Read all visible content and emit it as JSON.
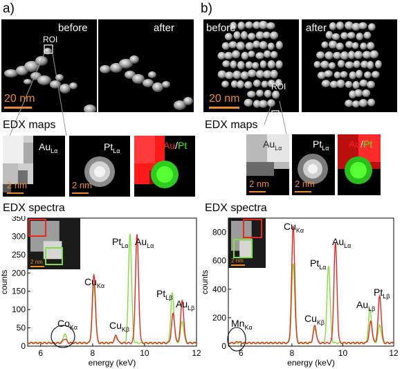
{
  "panel_a": {
    "letter": "a)",
    "before_label": "before",
    "after_label": "after",
    "roi_label": "ROI",
    "scalebar_label": "20 nm",
    "edx_maps_title": "EDX maps",
    "map_scalebar_label": "2 nm",
    "map1_element": "Au",
    "map1_line": "Lα",
    "map2_element": "Pt",
    "map2_line": "Lα",
    "map3_au": "Au",
    "map3_sep": "/",
    "map3_pt": "Pt",
    "edx_spectra_title": "EDX spectra",
    "inset_scalebar_label": "2 nm"
  },
  "panel_b": {
    "letter": "b)",
    "before_label": "before",
    "after_label": "after",
    "roi_label": "ROI",
    "scalebar_label": "20 nm",
    "edx_maps_title": "EDX maps",
    "map_scalebar_label": "2 nm",
    "map1_element": "Au",
    "map1_line": "Lα",
    "map2_element": "Pt",
    "map2_line": "Lα",
    "map3_au": "Au",
    "map3_sep": "/",
    "map3_pt": "Pt",
    "edx_spectra_title": "EDX spectra",
    "inset_scalebar_label": "2 nm"
  },
  "colors": {
    "scalebar": "#f08a28",
    "red_series": "#e8261c",
    "green_series": "#7ee03a",
    "au_map": "#ff0000",
    "pt_map": "#33ee22"
  },
  "chart_data": [
    {
      "type": "line",
      "panel": "a",
      "xlabel": "energy (keV)",
      "ylabel": "counts",
      "xlim": [
        5.5,
        12
      ],
      "ylim": [
        0,
        350
      ],
      "xticks": [
        6,
        8,
        10,
        12
      ],
      "yticks": [
        0,
        50,
        100,
        150,
        200,
        250,
        300,
        350
      ],
      "grid": false,
      "series": [
        {
          "color": "#e8261c",
          "peaks": [
            [
              6.93,
              12
            ],
            [
              8.05,
              185
            ],
            [
              8.9,
              20
            ],
            [
              9.71,
              295
            ],
            [
              11.1,
              80
            ],
            [
              11.45,
              115
            ]
          ]
        },
        {
          "color": "#7ee03a",
          "peaks": [
            [
              6.93,
              25
            ],
            [
              8.05,
              160
            ],
            [
              8.9,
              15
            ],
            [
              9.44,
              300
            ],
            [
              11.07,
              135
            ],
            [
              11.45,
              60
            ]
          ]
        }
      ],
      "annotations": [
        {
          "text": "Pt",
          "sub": "Lα",
          "x": 9.44,
          "y": 300
        },
        {
          "text": "Au",
          "sub": "Lα",
          "x": 9.71,
          "y": 295
        },
        {
          "text": "Cu",
          "sub": "Kα",
          "x": 8.05,
          "y": 185
        },
        {
          "text": "Pt",
          "sub": "Lβ",
          "x": 11.07,
          "y": 135
        },
        {
          "text": "Au",
          "sub": "Lβ",
          "x": 11.45,
          "y": 115
        },
        {
          "text": "Cu",
          "sub": "Kβ",
          "x": 8.9,
          "y": 45
        },
        {
          "text": "Co",
          "sub": "Kα",
          "x": 6.93,
          "y": 25
        }
      ]
    },
    {
      "type": "line",
      "panel": "b",
      "xlabel": "energy (keV)",
      "ylabel": "counts",
      "xlim": [
        5.5,
        12
      ],
      "ylim": [
        0,
        900
      ],
      "xticks": [
        6,
        8,
        10,
        12
      ],
      "yticks": [
        0,
        200,
        400,
        600,
        800
      ],
      "grid": false,
      "series": [
        {
          "color": "#e8261c",
          "peaks": [
            [
              5.9,
              10
            ],
            [
              8.05,
              820
            ],
            [
              8.9,
              120
            ],
            [
              9.71,
              700
            ],
            [
              11.1,
              150
            ],
            [
              11.45,
              330
            ]
          ]
        },
        {
          "color": "#7ee03a",
          "peaks": [
            [
              8.05,
              560
            ],
            [
              8.9,
              100
            ],
            [
              9.44,
              545
            ],
            [
              11.07,
              235
            ],
            [
              11.45,
              130
            ]
          ]
        }
      ],
      "annotations": [
        {
          "text": "Cu",
          "sub": "Kα",
          "x": 8.05,
          "y": 820
        },
        {
          "text": "Au",
          "sub": "Lα",
          "x": 9.71,
          "y": 700
        },
        {
          "text": "Pt",
          "sub": "Lα",
          "x": 9.44,
          "y": 545
        },
        {
          "text": "Au",
          "sub": "Lβ",
          "x": 11.45,
          "y": 330
        },
        {
          "text": "Pt",
          "sub": "Lβ",
          "x": 11.07,
          "y": 235
        },
        {
          "text": "Cu",
          "sub": "Kβ",
          "x": 8.9,
          "y": 120
        },
        {
          "text": "Mn",
          "sub": "Kα",
          "x": 5.9,
          "y": 10
        }
      ]
    }
  ]
}
